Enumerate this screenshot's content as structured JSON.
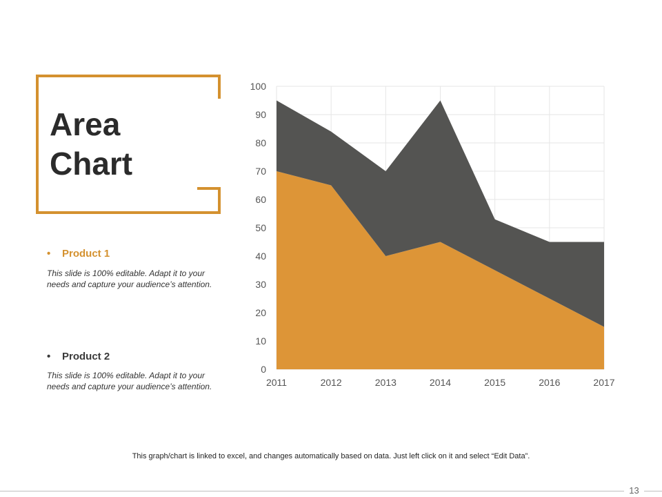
{
  "slide": {
    "title_line1": "Area",
    "title_line2": "Chart",
    "accent_color": "#d4912f",
    "products": [
      {
        "bullet": "•",
        "name": "Product 1",
        "description_line1": "This slide is 100% editable. Adapt it to your",
        "description_line2": "needs and capture your audience’s attention."
      },
      {
        "bullet": "•",
        "name": "Product 2",
        "description_line1": "This slide is 100% editable. Adapt it to your",
        "description_line2": "needs and capture your audience’s attention."
      }
    ],
    "footer_note": "This graph/chart is linked to excel, and changes automatically based on data. Just left click on it and select “Edit Data”.",
    "page_number": "13"
  },
  "chart_data": {
    "type": "area",
    "stacked": true,
    "title": "",
    "xlabel": "",
    "ylabel": "",
    "categories": [
      "2011",
      "2012",
      "2013",
      "2014",
      "2015",
      "2016",
      "2017"
    ],
    "ylim": [
      0,
      100
    ],
    "yticks": [
      0,
      10,
      20,
      30,
      40,
      50,
      60,
      70,
      80,
      90,
      100
    ],
    "grid": true,
    "legend": "none",
    "series": [
      {
        "name": "Product 1",
        "color": "#dd9537",
        "values": [
          70,
          65,
          40,
          45,
          35,
          25,
          15
        ]
      },
      {
        "name": "Product 2",
        "color": "#545452",
        "values": [
          25,
          19,
          30,
          50,
          18,
          20,
          30
        ]
      }
    ]
  }
}
